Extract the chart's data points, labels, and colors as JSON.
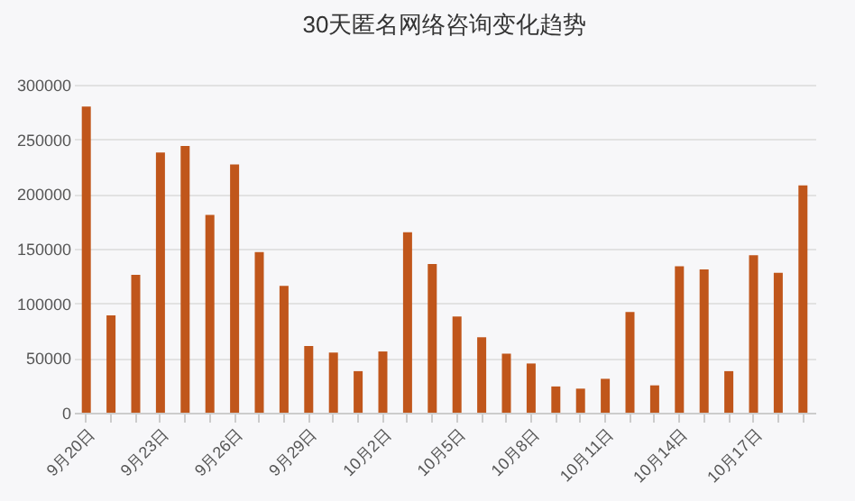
{
  "chart_data": {
    "type": "bar",
    "title": "30天匿名网络咨询变化趋势",
    "categories": [
      "9月20日",
      null,
      null,
      "9月23日",
      null,
      null,
      "9月26日",
      null,
      null,
      "9月29日",
      null,
      null,
      "10月2日",
      null,
      null,
      "10月5日",
      null,
      null,
      "10月8日",
      null,
      null,
      "10月11日",
      null,
      null,
      "10月14日",
      null,
      null,
      "10月17日",
      null,
      null
    ],
    "values": [
      280000,
      89000,
      126000,
      238000,
      244000,
      181000,
      227000,
      147000,
      116000,
      61000,
      55000,
      38000,
      56000,
      165000,
      136000,
      88000,
      69000,
      54000,
      45000,
      24000,
      22000,
      31000,
      92000,
      25000,
      134000,
      131000,
      38000,
      144000,
      128000,
      208000
    ],
    "color": "#c0561b",
    "ylim": [
      0,
      300000
    ],
    "yticks": [
      0,
      50000,
      100000,
      150000,
      200000,
      250000,
      300000
    ],
    "grid": "y"
  }
}
